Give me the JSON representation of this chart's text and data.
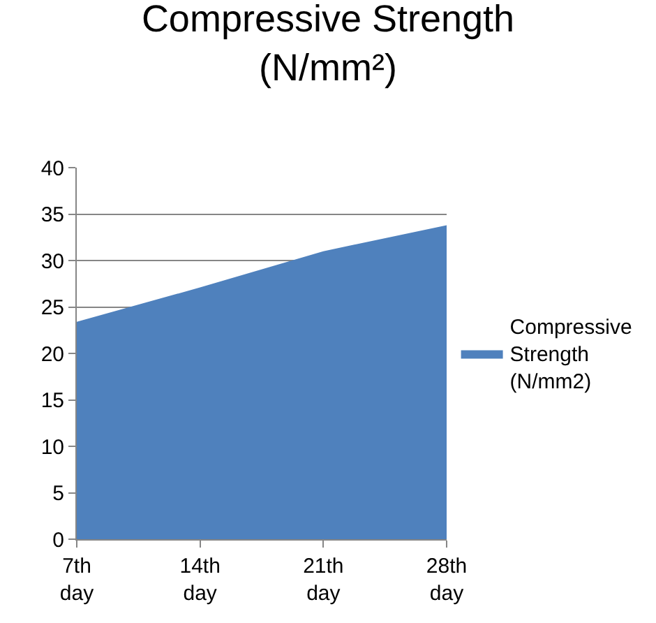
{
  "chart_data": {
    "type": "area",
    "title": "Compressive Strength (N/mm²)",
    "categories": [
      "7th day",
      "14th day",
      "21th day",
      "28th day"
    ],
    "series": [
      {
        "name": "Compressive Strength (N/mm2)",
        "color": "#4f81bd",
        "values": [
          23.4,
          27.1,
          31.0,
          33.8
        ]
      }
    ],
    "ylim": [
      0,
      40
    ],
    "yticks": [
      0,
      5,
      10,
      15,
      20,
      25,
      30,
      35,
      40
    ],
    "grid": "y",
    "legend": "right"
  }
}
